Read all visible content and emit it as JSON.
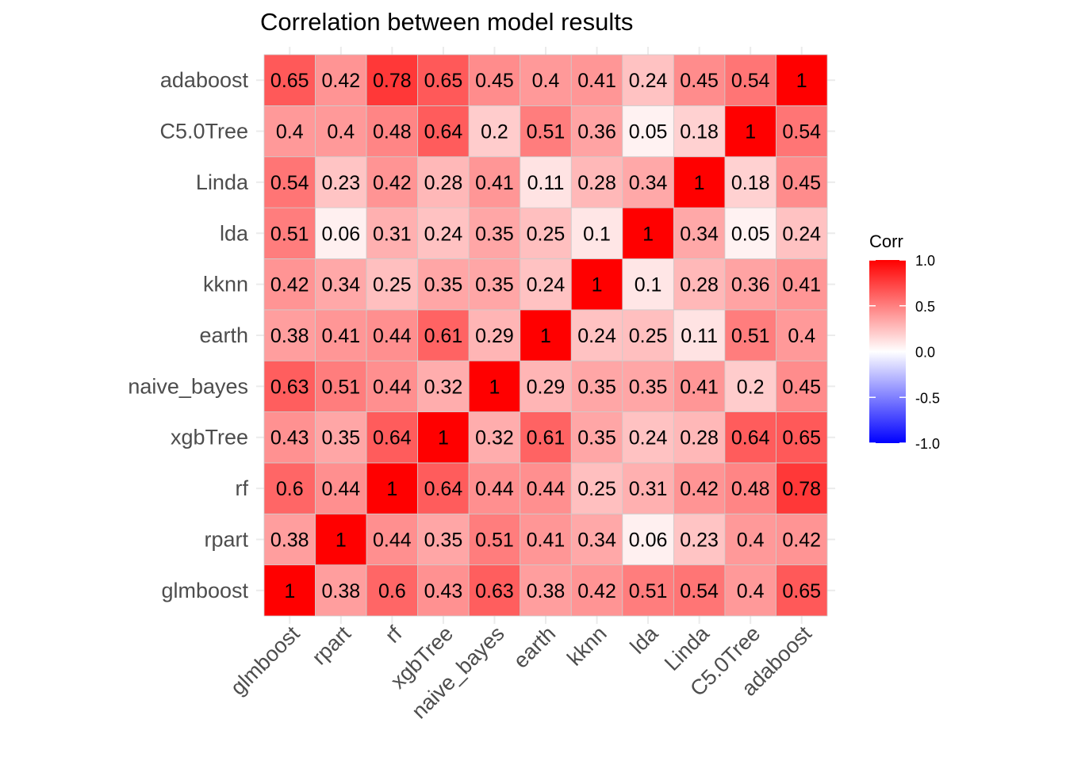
{
  "chart_data": {
    "type": "heatmap",
    "title": "Correlation between model results",
    "xlabel": "",
    "ylabel": "",
    "labels": [
      "glmboost",
      "rpart",
      "rf",
      "xgbTree",
      "naive_bayes",
      "earth",
      "kknn",
      "lda",
      "Linda",
      "C5.0Tree",
      "adaboost"
    ],
    "matrix": [
      [
        1,
        0.38,
        0.6,
        0.43,
        0.63,
        0.38,
        0.42,
        0.51,
        0.54,
        0.4,
        0.65
      ],
      [
        0.38,
        1,
        0.44,
        0.35,
        0.51,
        0.41,
        0.34,
        0.06,
        0.23,
        0.4,
        0.42
      ],
      [
        0.6,
        0.44,
        1,
        0.64,
        0.44,
        0.44,
        0.25,
        0.31,
        0.42,
        0.48,
        0.78
      ],
      [
        0.43,
        0.35,
        0.64,
        1,
        0.32,
        0.61,
        0.35,
        0.24,
        0.28,
        0.64,
        0.65
      ],
      [
        0.63,
        0.51,
        0.44,
        0.32,
        1,
        0.29,
        0.35,
        0.35,
        0.41,
        0.2,
        0.45
      ],
      [
        0.38,
        0.41,
        0.44,
        0.61,
        0.29,
        1,
        0.24,
        0.25,
        0.11,
        0.51,
        0.4
      ],
      [
        0.42,
        0.34,
        0.25,
        0.35,
        0.35,
        0.24,
        1,
        0.1,
        0.28,
        0.36,
        0.41
      ],
      [
        0.51,
        0.06,
        0.31,
        0.24,
        0.35,
        0.25,
        0.1,
        1,
        0.34,
        0.05,
        0.24
      ],
      [
        0.54,
        0.23,
        0.42,
        0.28,
        0.41,
        0.11,
        0.28,
        0.34,
        1,
        0.18,
        0.45
      ],
      [
        0.4,
        0.4,
        0.48,
        0.64,
        0.2,
        0.51,
        0.36,
        0.05,
        0.18,
        1,
        0.54
      ],
      [
        0.65,
        0.42,
        0.78,
        0.65,
        0.45,
        0.4,
        0.41,
        0.24,
        0.45,
        0.54,
        1
      ]
    ],
    "legend": {
      "title": "Corr",
      "range": [
        -1,
        1
      ],
      "ticks": [
        "1.0",
        "0.5",
        "0.0",
        "-0.5",
        "-1.0"
      ],
      "low_color": "#0000ff",
      "mid_color": "#ffffff",
      "high_color": "#ff0000",
      "placement": "right"
    },
    "grid": true
  }
}
